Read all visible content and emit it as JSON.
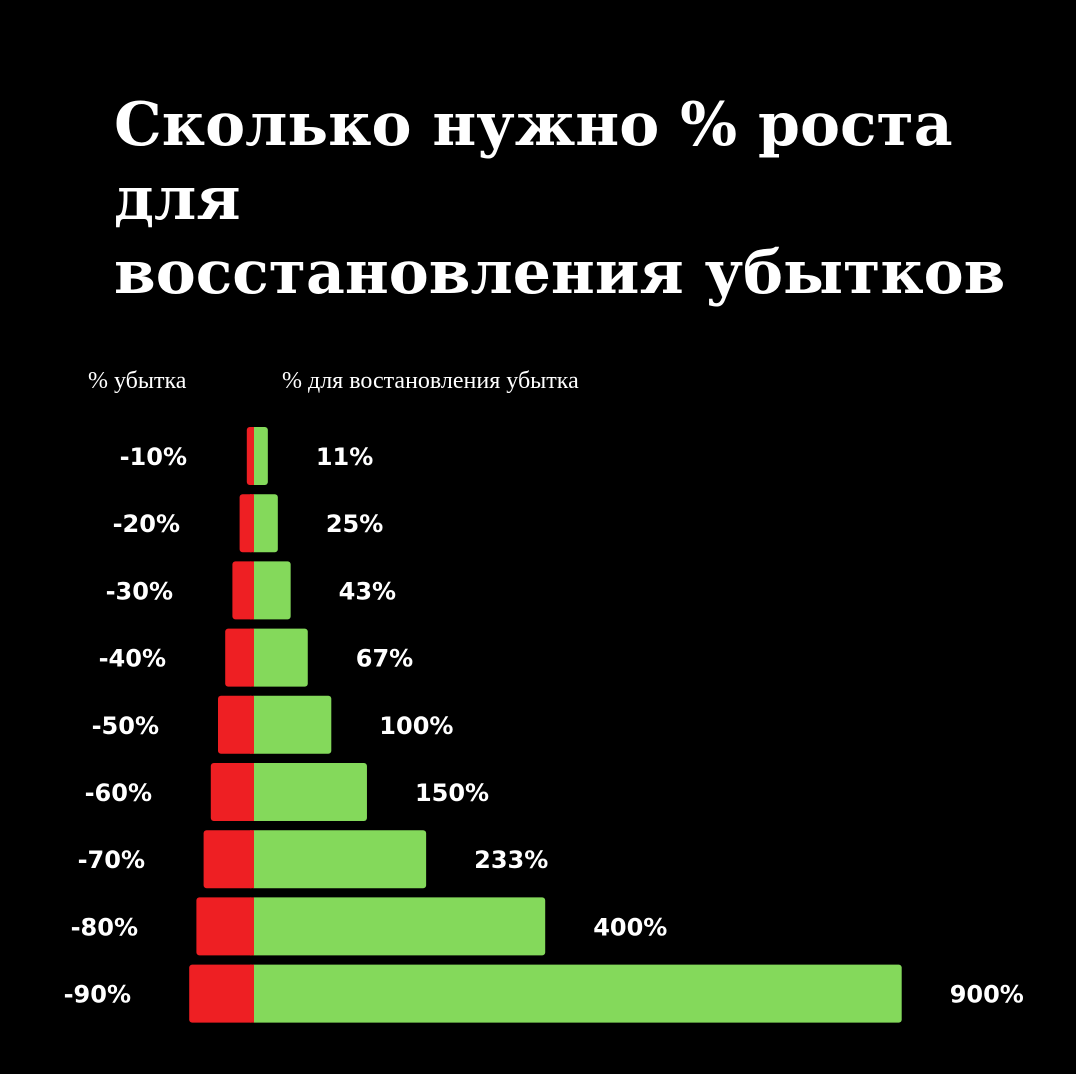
{
  "title_line1": "Сколько нужно % роста для",
  "title_line2": "восстановления убытков",
  "header_loss": "% убытка",
  "header_recovery": "% для востановления убытка",
  "colors": {
    "background": "#000000",
    "loss": "#ee1f23",
    "recovery": "#84d95b",
    "text": "#ffffff"
  },
  "chart_data": {
    "type": "bar",
    "orientation": "horizontal-diverging",
    "categories": [
      "-10%",
      "-20%",
      "-30%",
      "-40%",
      "-50%",
      "-60%",
      "-70%",
      "-80%",
      "-90%"
    ],
    "series": [
      {
        "name": "% убытка",
        "values": [
          -10,
          -20,
          -30,
          -40,
          -50,
          -60,
          -70,
          -80,
          -90
        ]
      },
      {
        "name": "% для востановления убытка",
        "values": [
          11,
          25,
          43,
          67,
          100,
          150,
          233,
          400,
          900
        ]
      }
    ],
    "loss_labels": [
      "-10%",
      "-20%",
      "-30%",
      "-40%",
      "-50%",
      "-60%",
      "-70%",
      "-80%",
      "-90%"
    ],
    "recovery_labels": [
      "11%",
      "25%",
      "43%",
      "67%",
      "100%",
      "150%",
      "233%",
      "400%",
      "900%"
    ],
    "title": "Сколько нужно % роста для восстановления убытков",
    "grid": false,
    "legend": "none"
  }
}
